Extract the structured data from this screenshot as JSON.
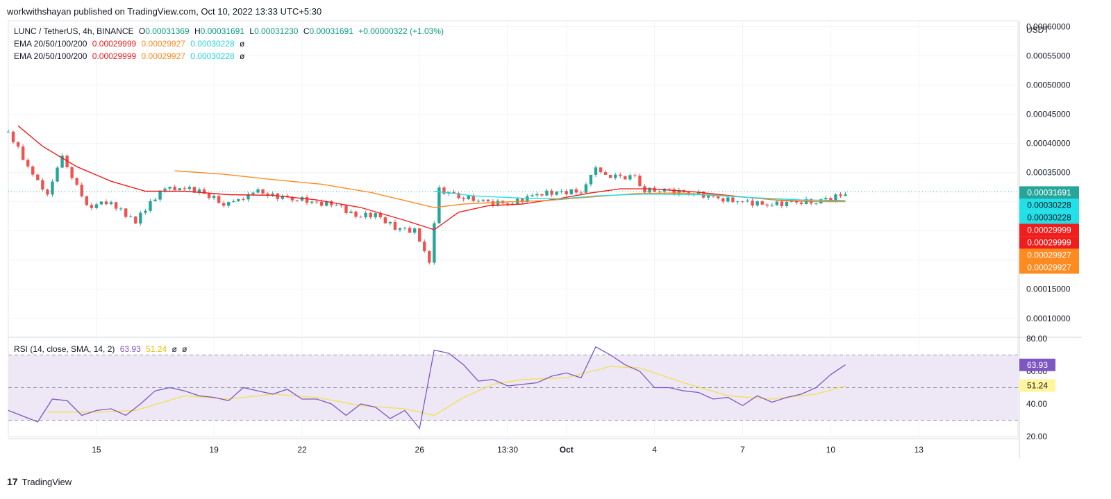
{
  "header": {
    "published_text": "workwithshayan published on TradingView.com, Oct 10, 2022 13:33 UTC+5:30"
  },
  "footer": {
    "brand": "TradingView",
    "logo_icon": "tradingview-logo-icon"
  },
  "legend": {
    "symbol": "LUNC / TetherUS, 4h, BINANCE",
    "o_label": "O",
    "o": "0.00031369",
    "h_label": "H",
    "h": "0.00031691",
    "l_label": "L",
    "l": "0.00031230",
    "c_label": "C",
    "c": "0.00031691",
    "change": "+0.00000322 (+1.03%)",
    "ema_rows": [
      {
        "label": "EMA 20/50/100/200",
        "v1": "0.00029999",
        "v2": "0.00029927",
        "v3": "0.00030228",
        "v4": "ø"
      },
      {
        "label": "EMA 20/50/100/200",
        "v1": "0.00029999",
        "v2": "0.00029927",
        "v3": "0.00030228",
        "v4": "ø"
      }
    ],
    "rsi_label": "RSI (14, close, SMA, 14, 2)",
    "rsi_value": "63.93",
    "rsi_sma_value": "51.24",
    "rsi_extra1": "ø",
    "rsi_extra2": "ø"
  },
  "colors": {
    "up": "#26a69a",
    "down": "#ef5350",
    "ema20": "#f01d1d",
    "ema50": "#ff8a1f",
    "ema100": "#22e0e8",
    "rsi": "#7e57c2",
    "rsi_sma": "#f5e04a",
    "rsi_band": "#ede7f6"
  },
  "chart_data": {
    "type": "candlestick",
    "currency_label": "USDT",
    "price_axis": {
      "ylim": [
        7e-05,
        0.00061
      ],
      "ticks": [
        "0.00010000",
        "0.00015000",
        "0.00020000",
        "0.00025000",
        "0.00030000",
        "0.00035000",
        "0.00040000",
        "0.00045000",
        "0.00050000",
        "0.00055000",
        "0.00060000"
      ]
    },
    "price_labels": [
      {
        "text": "0.00031691",
        "value": 0.00031691,
        "color": "#26a69a"
      },
      {
        "text": "0.00030228",
        "value": 0.00030228,
        "color": "#22e0e8"
      },
      {
        "text": "0.00030228",
        "value": 0.00030228,
        "color": "#22e0e8"
      },
      {
        "text": "0.00029999",
        "value": 0.00029999,
        "color": "#f01d1d"
      },
      {
        "text": "0.00029999",
        "value": 0.00029999,
        "color": "#f01d1d"
      },
      {
        "text": "0.00029927",
        "value": 0.00029927,
        "color": "#ff8a1f"
      },
      {
        "text": "0.00029927",
        "value": 0.00029927,
        "color": "#ff8a1f"
      }
    ],
    "x_axis": {
      "start": "Sep 12, 2022 00:00",
      "bar_hours": 4,
      "visible_days": 36,
      "ticks": [
        {
          "label": "15",
          "date": "2022-09-15"
        },
        {
          "label": "19",
          "date": "2022-09-19"
        },
        {
          "label": "22",
          "date": "2022-09-22"
        },
        {
          "label": "26",
          "date": "2022-09-26"
        },
        {
          "label": "13:30",
          "date": "2022-09-29T00:00"
        },
        {
          "label": "Oct",
          "date": "2022-10-01",
          "bold": true
        },
        {
          "label": "4",
          "date": "2022-10-04"
        },
        {
          "label": "7",
          "date": "2022-10-07"
        },
        {
          "label": "10",
          "date": "2022-10-10"
        },
        {
          "label": "13",
          "date": "2022-10-13"
        }
      ]
    },
    "close_series": [
      {
        "date": "2022-09-12",
        "value": 0.00042
      },
      {
        "date": "2022-09-12T20:00",
        "value": 0.000345
      },
      {
        "date": "2022-09-13T08:00",
        "value": 0.000315
      },
      {
        "date": "2022-09-13T20:00",
        "value": 0.000375
      },
      {
        "date": "2022-09-14T04:00",
        "value": 0.000345
      },
      {
        "date": "2022-09-14T16:00",
        "value": 0.00029
      },
      {
        "date": "2022-09-15T08:00",
        "value": 0.0003
      },
      {
        "date": "2022-09-15T20:00",
        "value": 0.000285
      },
      {
        "date": "2022-09-16T08:00",
        "value": 0.000265
      },
      {
        "date": "2022-09-16T20:00",
        "value": 0.0003
      },
      {
        "date": "2022-09-17T08:00",
        "value": 0.000322
      },
      {
        "date": "2022-09-17T20:00",
        "value": 0.000325
      },
      {
        "date": "2022-09-18T12:00",
        "value": 0.000318
      },
      {
        "date": "2022-09-19T08:00",
        "value": 0.000297
      },
      {
        "date": "2022-09-19T20:00",
        "value": 0.0003
      },
      {
        "date": "2022-09-20T08:00",
        "value": 0.00032
      },
      {
        "date": "2022-09-21T00:00",
        "value": 0.00031
      },
      {
        "date": "2022-09-21T20:00",
        "value": 0.000305
      },
      {
        "date": "2022-09-22T12:00",
        "value": 0.000298
      },
      {
        "date": "2022-09-23T04:00",
        "value": 0.000295
      },
      {
        "date": "2022-09-23T20:00",
        "value": 0.000275
      },
      {
        "date": "2022-09-24T12:00",
        "value": 0.000278
      },
      {
        "date": "2022-09-25T04:00",
        "value": 0.000255
      },
      {
        "date": "2022-09-25T20:00",
        "value": 0.00025
      },
      {
        "date": "2022-09-26T08:00",
        "value": 0.0002
      },
      {
        "date": "2022-09-26T16:00",
        "value": 0.00032
      },
      {
        "date": "2022-09-27T12:00",
        "value": 0.000308
      },
      {
        "date": "2022-09-28T08:00",
        "value": 0.000298
      },
      {
        "date": "2022-09-29T04:00",
        "value": 0.000298
      },
      {
        "date": "2022-09-30T00:00",
        "value": 0.000313
      },
      {
        "date": "2022-09-30T16:00",
        "value": 0.000316
      },
      {
        "date": "2022-10-01T12:00",
        "value": 0.000318
      },
      {
        "date": "2022-10-02T00:00",
        "value": 0.000355
      },
      {
        "date": "2022-10-02T12:00",
        "value": 0.000345
      },
      {
        "date": "2022-10-03T08:00",
        "value": 0.00034
      },
      {
        "date": "2022-10-03T16:00",
        "value": 0.00032
      },
      {
        "date": "2022-10-04T12:00",
        "value": 0.000318
      },
      {
        "date": "2022-10-05T08:00",
        "value": 0.000315
      },
      {
        "date": "2022-10-06T04:00",
        "value": 0.000305
      },
      {
        "date": "2022-10-07T00:00",
        "value": 0.0003
      },
      {
        "date": "2022-10-07T20:00",
        "value": 0.000295
      },
      {
        "date": "2022-10-08T16:00",
        "value": 0.000298
      },
      {
        "date": "2022-10-09T12:00",
        "value": 0.000301
      },
      {
        "date": "2022-10-10T04:00",
        "value": 0.000308
      },
      {
        "date": "2022-10-10T12:00",
        "value": 0.000317
      }
    ],
    "ema_series": [
      {
        "name": "EMA 20",
        "color": "#f01d1d",
        "points": [
          {
            "date": "2022-09-12T08:00",
            "value": 0.00043
          },
          {
            "date": "2022-09-13T04:00",
            "value": 0.000395
          },
          {
            "date": "2022-09-14T08:00",
            "value": 0.00036
          },
          {
            "date": "2022-09-15T12:00",
            "value": 0.000335
          },
          {
            "date": "2022-09-16T16:00",
            "value": 0.000318
          },
          {
            "date": "2022-09-18T00:00",
            "value": 0.000318
          },
          {
            "date": "2022-09-19T12:00",
            "value": 0.000312
          },
          {
            "date": "2022-09-21T00:00",
            "value": 0.000311
          },
          {
            "date": "2022-09-22T12:00",
            "value": 0.000303
          },
          {
            "date": "2022-09-24T00:00",
            "value": 0.00029
          },
          {
            "date": "2022-09-25T12:00",
            "value": 0.000268
          },
          {
            "date": "2022-09-26T12:00",
            "value": 0.000252
          },
          {
            "date": "2022-09-27T08:00",
            "value": 0.000282
          },
          {
            "date": "2022-09-28T08:00",
            "value": 0.000293
          },
          {
            "date": "2022-09-29T12:00",
            "value": 0.000296
          },
          {
            "date": "2022-09-30T20:00",
            "value": 0.000306
          },
          {
            "date": "2022-10-01T20:00",
            "value": 0.000315
          },
          {
            "date": "2022-10-02T20:00",
            "value": 0.000322
          },
          {
            "date": "2022-10-03T20:00",
            "value": 0.000322
          },
          {
            "date": "2022-10-05T08:00",
            "value": 0.000317
          },
          {
            "date": "2022-10-06T20:00",
            "value": 0.000309
          },
          {
            "date": "2022-10-08T08:00",
            "value": 0.000302
          },
          {
            "date": "2022-10-09T16:00",
            "value": 0.0003
          },
          {
            "date": "2022-10-10T12:00",
            "value": 0.000302
          }
        ]
      },
      {
        "name": "EMA 50",
        "color": "#ff8a1f",
        "points": [
          {
            "date": "2022-09-17T16:00",
            "value": 0.000353
          },
          {
            "date": "2022-09-19T08:00",
            "value": 0.000347
          },
          {
            "date": "2022-09-21T00:00",
            "value": 0.000338
          },
          {
            "date": "2022-09-22T16:00",
            "value": 0.00033
          },
          {
            "date": "2022-09-24T08:00",
            "value": 0.000316
          },
          {
            "date": "2022-09-25T20:00",
            "value": 0.000298
          },
          {
            "date": "2022-09-26T12:00",
            "value": 0.00029
          },
          {
            "date": "2022-09-27T12:00",
            "value": 0.000296
          },
          {
            "date": "2022-09-28T16:00",
            "value": 0.000299
          },
          {
            "date": "2022-09-30T08:00",
            "value": 0.000302
          },
          {
            "date": "2022-10-01T20:00",
            "value": 0.000308
          },
          {
            "date": "2022-10-03T08:00",
            "value": 0.000314
          },
          {
            "date": "2022-10-04T20:00",
            "value": 0.000315
          },
          {
            "date": "2022-10-06T12:00",
            "value": 0.00031
          },
          {
            "date": "2022-10-08T04:00",
            "value": 0.000303
          },
          {
            "date": "2022-10-09T16:00",
            "value": 0.0003
          },
          {
            "date": "2022-10-10T12:00",
            "value": 0.0003
          }
        ]
      },
      {
        "name": "EMA 100",
        "color": "#22e0e8",
        "points": [
          {
            "date": "2022-09-26T12:00",
            "value": 0.000318
          },
          {
            "date": "2022-09-27T20:00",
            "value": 0.00031
          },
          {
            "date": "2022-09-29T12:00",
            "value": 0.000306
          },
          {
            "date": "2022-09-30T20:00",
            "value": 0.000305
          },
          {
            "date": "2022-10-02T00:00",
            "value": 0.00031
          },
          {
            "date": "2022-10-03T16:00",
            "value": 0.000313
          },
          {
            "date": "2022-10-05T12:00",
            "value": 0.000312
          },
          {
            "date": "2022-10-07T08:00",
            "value": 0.000307
          },
          {
            "date": "2022-10-09T00:00",
            "value": 0.000303
          },
          {
            "date": "2022-10-10T12:00",
            "value": 0.000302
          }
        ]
      }
    ],
    "rsi": {
      "ylim": [
        20,
        80
      ],
      "ticks": [
        "20.00",
        "40.00",
        "60.00",
        "80.00"
      ],
      "bands": [
        30,
        50,
        70
      ],
      "value_label": "63.93",
      "sma_label": "51.24",
      "rsi_values": [
        {
          "date": "2022-09-12",
          "value": 36
        },
        {
          "date": "2022-09-13",
          "value": 29
        },
        {
          "date": "2022-09-13T12:00",
          "value": 43
        },
        {
          "date": "2022-09-14",
          "value": 42
        },
        {
          "date": "2022-09-14T12:00",
          "value": 33
        },
        {
          "date": "2022-09-15",
          "value": 36
        },
        {
          "date": "2022-09-15T12:00",
          "value": 37
        },
        {
          "date": "2022-09-16",
          "value": 33
        },
        {
          "date": "2022-09-16T12:00",
          "value": 40
        },
        {
          "date": "2022-09-17",
          "value": 48
        },
        {
          "date": "2022-09-17T12:00",
          "value": 50
        },
        {
          "date": "2022-09-18",
          "value": 48
        },
        {
          "date": "2022-09-18T12:00",
          "value": 45
        },
        {
          "date": "2022-09-19",
          "value": 44
        },
        {
          "date": "2022-09-19T12:00",
          "value": 42
        },
        {
          "date": "2022-09-20",
          "value": 50
        },
        {
          "date": "2022-09-20T12:00",
          "value": 48
        },
        {
          "date": "2022-09-21",
          "value": 46
        },
        {
          "date": "2022-09-21T12:00",
          "value": 49
        },
        {
          "date": "2022-09-22",
          "value": 43
        },
        {
          "date": "2022-09-22T12:00",
          "value": 43
        },
        {
          "date": "2022-09-23",
          "value": 40
        },
        {
          "date": "2022-09-23T12:00",
          "value": 33
        },
        {
          "date": "2022-09-24",
          "value": 40
        },
        {
          "date": "2022-09-24T12:00",
          "value": 38
        },
        {
          "date": "2022-09-25",
          "value": 31
        },
        {
          "date": "2022-09-25T12:00",
          "value": 36
        },
        {
          "date": "2022-09-26",
          "value": 25
        },
        {
          "date": "2022-09-26T12:00",
          "value": 73
        },
        {
          "date": "2022-09-27",
          "value": 71
        },
        {
          "date": "2022-09-27T12:00",
          "value": 64
        },
        {
          "date": "2022-09-28",
          "value": 54
        },
        {
          "date": "2022-09-28T12:00",
          "value": 55
        },
        {
          "date": "2022-09-29",
          "value": 51
        },
        {
          "date": "2022-09-29T12:00",
          "value": 52
        },
        {
          "date": "2022-09-30",
          "value": 53
        },
        {
          "date": "2022-09-30T12:00",
          "value": 57
        },
        {
          "date": "2022-10-01",
          "value": 59
        },
        {
          "date": "2022-10-01T12:00",
          "value": 56
        },
        {
          "date": "2022-10-02",
          "value": 75
        },
        {
          "date": "2022-10-02T12:00",
          "value": 70
        },
        {
          "date": "2022-10-03",
          "value": 64
        },
        {
          "date": "2022-10-03T12:00",
          "value": 60
        },
        {
          "date": "2022-10-04",
          "value": 50
        },
        {
          "date": "2022-10-04T12:00",
          "value": 50
        },
        {
          "date": "2022-10-05",
          "value": 48
        },
        {
          "date": "2022-10-05T12:00",
          "value": 47
        },
        {
          "date": "2022-10-06",
          "value": 43
        },
        {
          "date": "2022-10-06T12:00",
          "value": 44
        },
        {
          "date": "2022-10-07",
          "value": 39
        },
        {
          "date": "2022-10-07T12:00",
          "value": 45
        },
        {
          "date": "2022-10-08",
          "value": 41
        },
        {
          "date": "2022-10-08T12:00",
          "value": 44
        },
        {
          "date": "2022-10-09",
          "value": 46
        },
        {
          "date": "2022-10-09T12:00",
          "value": 50
        },
        {
          "date": "2022-10-10",
          "value": 58
        },
        {
          "date": "2022-10-10T12:00",
          "value": 64
        }
      ],
      "sma_values": [
        {
          "date": "2022-09-13T08:00",
          "value": 35
        },
        {
          "date": "2022-09-15",
          "value": 35
        },
        {
          "date": "2022-09-16T08:00",
          "value": 36
        },
        {
          "date": "2022-09-18",
          "value": 45
        },
        {
          "date": "2022-09-19T12:00",
          "value": 43
        },
        {
          "date": "2022-09-21",
          "value": 46
        },
        {
          "date": "2022-09-22T12:00",
          "value": 44
        },
        {
          "date": "2022-09-24",
          "value": 39
        },
        {
          "date": "2022-09-25T12:00",
          "value": 37
        },
        {
          "date": "2022-09-26T12:00",
          "value": 33
        },
        {
          "date": "2022-09-27T12:00",
          "value": 44
        },
        {
          "date": "2022-09-28T12:00",
          "value": 52
        },
        {
          "date": "2022-09-29T12:00",
          "value": 55
        },
        {
          "date": "2022-10-01",
          "value": 56
        },
        {
          "date": "2022-10-02T12:00",
          "value": 63
        },
        {
          "date": "2022-10-03T12:00",
          "value": 62
        },
        {
          "date": "2022-10-05",
          "value": 53
        },
        {
          "date": "2022-10-06T12:00",
          "value": 45
        },
        {
          "date": "2022-10-08",
          "value": 43
        },
        {
          "date": "2022-10-09T12:00",
          "value": 46
        },
        {
          "date": "2022-10-10T12:00",
          "value": 51
        }
      ]
    }
  }
}
